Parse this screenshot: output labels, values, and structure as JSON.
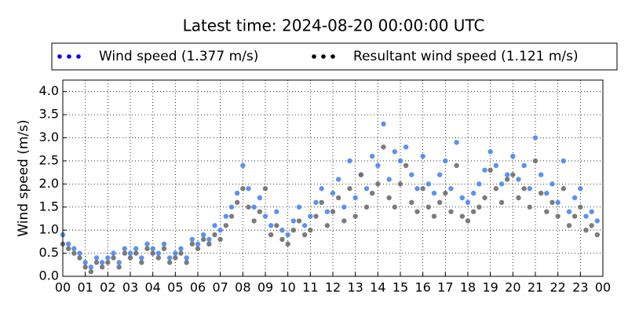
{
  "chart_data": {
    "type": "scatter",
    "title": "Latest time: 2024-08-20 00:00:00 UTC",
    "ylabel": "Wind speed (m/s)",
    "xlim": [
      0,
      24
    ],
    "ylim": [
      0,
      4.25
    ],
    "grid": true,
    "legend": "top",
    "xticks": [
      {
        "value": 0,
        "label": "00"
      },
      {
        "value": 1,
        "label": "01"
      },
      {
        "value": 2,
        "label": "02"
      },
      {
        "value": 3,
        "label": "03"
      },
      {
        "value": 4,
        "label": "04"
      },
      {
        "value": 5,
        "label": "05"
      },
      {
        "value": 6,
        "label": "06"
      },
      {
        "value": 7,
        "label": "07"
      },
      {
        "value": 8,
        "label": "08"
      },
      {
        "value": 9,
        "label": "09"
      },
      {
        "value": 10,
        "label": "10"
      },
      {
        "value": 11,
        "label": "11"
      },
      {
        "value": 12,
        "label": "12"
      },
      {
        "value": 13,
        "label": "13"
      },
      {
        "value": 14,
        "label": "14"
      },
      {
        "value": 15,
        "label": "15"
      },
      {
        "value": 16,
        "label": "16"
      },
      {
        "value": 17,
        "label": "17"
      },
      {
        "value": 18,
        "label": "18"
      },
      {
        "value": 19,
        "label": "19"
      },
      {
        "value": 20,
        "label": "20"
      },
      {
        "value": 21,
        "label": "21"
      },
      {
        "value": 22,
        "label": "22"
      },
      {
        "value": 23,
        "label": "23"
      },
      {
        "value": 24,
        "label": "00"
      }
    ],
    "yticks": [
      {
        "value": 0,
        "label": "0.0"
      },
      {
        "value": 0.5,
        "label": "0.5"
      },
      {
        "value": 1,
        "label": "1.0"
      },
      {
        "value": 1.5,
        "label": "1.5"
      },
      {
        "value": 2,
        "label": "2.0"
      },
      {
        "value": 2.5,
        "label": "2.5"
      },
      {
        "value": 3,
        "label": "3.0"
      },
      {
        "value": 3.5,
        "label": "3.5"
      },
      {
        "value": 4,
        "label": "4.0"
      }
    ],
    "x": [
      0,
      0.25,
      0.5,
      0.75,
      1,
      1.25,
      1.5,
      1.75,
      2,
      2.25,
      2.5,
      2.75,
      3,
      3.25,
      3.5,
      3.75,
      4,
      4.25,
      4.5,
      4.75,
      5,
      5.25,
      5.5,
      5.75,
      6,
      6.25,
      6.5,
      6.75,
      7,
      7.25,
      7.5,
      7.75,
      8,
      8.25,
      8.5,
      8.75,
      9,
      9.25,
      9.5,
      9.75,
      10,
      10.25,
      10.5,
      10.75,
      11,
      11.25,
      11.5,
      11.75,
      12,
      12.25,
      12.5,
      12.75,
      13,
      13.25,
      13.5,
      13.75,
      14,
      14.25,
      14.5,
      14.75,
      15,
      15.25,
      15.5,
      15.75,
      16,
      16.25,
      16.5,
      16.75,
      17,
      17.25,
      17.5,
      17.75,
      18,
      18.25,
      18.5,
      18.75,
      19,
      19.25,
      19.5,
      19.75,
      20,
      20.25,
      20.5,
      20.75,
      21,
      21.25,
      21.5,
      21.75,
      22,
      22.25,
      22.5,
      22.75,
      23,
      23.25,
      23.5,
      23.75
    ],
    "series": [
      {
        "name": "Wind speed (1.377 m/s)",
        "legend_color": "#0000ff",
        "color": "#4a86ee",
        "values": [
          0.9,
          0.7,
          0.6,
          0.5,
          0.3,
          0.2,
          0.4,
          0.3,
          0.4,
          0.5,
          0.3,
          0.6,
          0.5,
          0.6,
          0.4,
          0.7,
          0.6,
          0.5,
          0.7,
          0.4,
          0.5,
          0.6,
          0.4,
          0.8,
          0.7,
          0.9,
          0.8,
          1.1,
          1.0,
          1.3,
          1.5,
          1.8,
          2.4,
          1.9,
          1.5,
          1.7,
          1.3,
          1.1,
          1.4,
          1.0,
          0.9,
          1.2,
          1.5,
          1.1,
          1.3,
          1.6,
          1.9,
          1.4,
          1.8,
          2.1,
          1.5,
          2.5,
          1.7,
          2.2,
          1.9,
          2.6,
          2.4,
          3.3,
          2.1,
          2.7,
          2.5,
          2.8,
          2.2,
          1.9,
          2.6,
          2.0,
          1.8,
          2.2,
          2.5,
          1.9,
          2.9,
          1.7,
          1.6,
          1.8,
          2.0,
          2.3,
          2.7,
          2.4,
          2.0,
          2.2,
          2.6,
          2.1,
          2.4,
          1.9,
          3.0,
          2.2,
          1.8,
          2.0,
          1.6,
          2.5,
          1.4,
          1.7,
          1.9,
          1.3,
          1.4,
          1.2
        ]
      },
      {
        "name": "Resultant wind speed (1.121 m/s)",
        "legend_color": "#000000",
        "color": "#6e6e6e",
        "values": [
          0.7,
          0.6,
          0.5,
          0.4,
          0.2,
          0.1,
          0.3,
          0.2,
          0.3,
          0.4,
          0.2,
          0.5,
          0.4,
          0.5,
          0.3,
          0.6,
          0.5,
          0.4,
          0.6,
          0.3,
          0.4,
          0.5,
          0.3,
          0.7,
          0.6,
          0.8,
          0.7,
          0.9,
          0.8,
          1.1,
          1.3,
          1.6,
          1.9,
          1.5,
          1.2,
          1.4,
          1.9,
          0.9,
          1.1,
          0.8,
          0.7,
          1.0,
          1.2,
          0.9,
          1.0,
          1.3,
          1.6,
          1.1,
          1.4,
          1.7,
          1.2,
          1.9,
          1.3,
          2.2,
          1.5,
          1.8,
          2.0,
          2.8,
          1.7,
          1.5,
          2.0,
          2.4,
          1.6,
          1.4,
          1.9,
          1.5,
          1.3,
          1.6,
          1.8,
          1.4,
          2.4,
          1.3,
          1.2,
          1.4,
          1.5,
          1.7,
          2.3,
          1.9,
          1.6,
          2.1,
          2.2,
          1.7,
          1.9,
          1.5,
          2.5,
          1.8,
          1.4,
          1.6,
          1.3,
          1.9,
          1.1,
          1.3,
          1.5,
          1.0,
          1.1,
          0.9
        ]
      }
    ]
  }
}
